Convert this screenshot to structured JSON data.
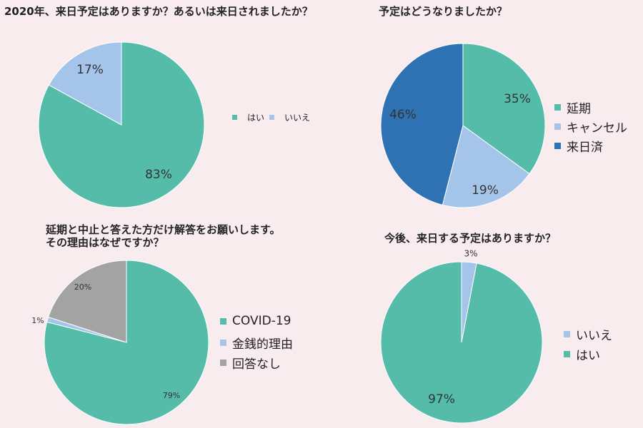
{
  "colors": {
    "teal": "#55bca9",
    "lightblue": "#a4c5e9",
    "darkblue": "#2f72b4",
    "gray": "#a3a3a3",
    "background": "#f9ecee"
  },
  "chart_data": [
    {
      "type": "pie",
      "title": "2020年、来日予定はありますか？あるいは来日されましたか？",
      "slices": [
        {
          "label": "はい",
          "value": 83,
          "display": "83%",
          "color": "#55bca9"
        },
        {
          "label": "いいえ",
          "value": 17,
          "display": "17%",
          "color": "#a4c5e9"
        }
      ],
      "legend": [
        "はい",
        "いいえ"
      ],
      "legend_position": "right"
    },
    {
      "type": "pie",
      "title": "予定はどうなりましたか？",
      "slices": [
        {
          "label": "延期",
          "value": 35,
          "display": "35%",
          "color": "#55bca9"
        },
        {
          "label": "キャンセル",
          "value": 19,
          "display": "19%",
          "color": "#a4c5e9"
        },
        {
          "label": "来日済",
          "value": 46,
          "display": "46%",
          "color": "#2f72b4"
        }
      ],
      "legend": [
        "延期",
        "キャンセル",
        "来日済"
      ],
      "legend_position": "right"
    },
    {
      "type": "pie",
      "title_lines": [
        "延期と中止と答えた方だけ解答をお願いします。",
        "その理由はなぜですか？"
      ],
      "slices": [
        {
          "label": "COVID-19",
          "value": 79,
          "display": "79%",
          "color": "#55bca9"
        },
        {
          "label": "金銭的理由",
          "value": 1,
          "display": "1%",
          "color": "#a4c5e9"
        },
        {
          "label": "回答なし",
          "value": 20,
          "display": "20%",
          "color": "#a3a3a3"
        }
      ],
      "legend": [
        "COVID-19",
        "金銭的理由",
        "回答なし"
      ],
      "legend_position": "right"
    },
    {
      "type": "pie",
      "title": "今後、来日する予定はありますか？",
      "slices": [
        {
          "label": "いいえ",
          "value": 3,
          "display": "3%",
          "color": "#a4c5e9"
        },
        {
          "label": "はい",
          "value": 97,
          "display": "97%",
          "color": "#55bca9"
        }
      ],
      "legend": [
        "いいえ",
        "はい"
      ],
      "legend_position": "right"
    }
  ]
}
